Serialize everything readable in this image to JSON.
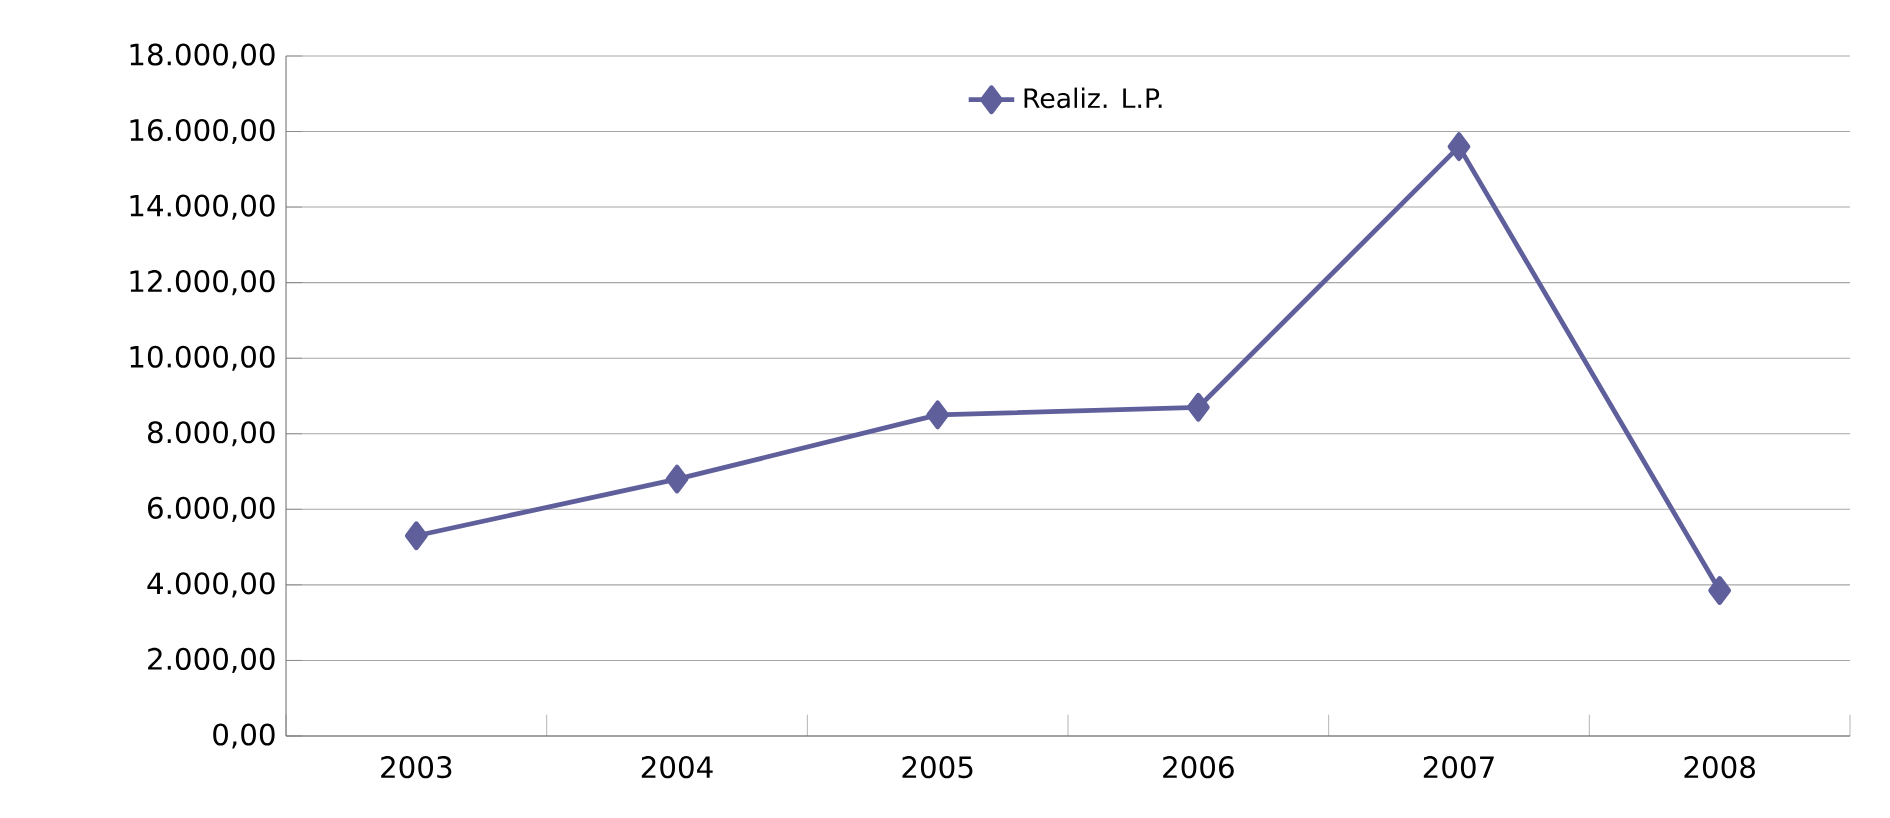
{
  "chart_data": {
    "type": "line",
    "categories": [
      "2003",
      "2004",
      "2005",
      "2006",
      "2007",
      "2008"
    ],
    "series": [
      {
        "name": "Realiz. L.P.",
        "color": "#5f5f9c",
        "values": [
          5300,
          6800,
          8500,
          8700,
          15600,
          3850
        ]
      }
    ],
    "ylim": [
      0,
      18000
    ],
    "yticks": [
      {
        "value": 0,
        "label": "0,00"
      },
      {
        "value": 2000,
        "label": "2.000,00"
      },
      {
        "value": 4000,
        "label": "4.000,00"
      },
      {
        "value": 6000,
        "label": "6.000,00"
      },
      {
        "value": 8000,
        "label": "8.000,00"
      },
      {
        "value": 10000,
        "label": "10.000,00"
      },
      {
        "value": 12000,
        "label": "12.000,00"
      },
      {
        "value": 14000,
        "label": "14.000,00"
      },
      {
        "value": 16000,
        "label": "16.000,00"
      },
      {
        "value": 18000,
        "label": "18.000,00"
      }
    ],
    "grid": "y",
    "legend": "top",
    "marker": "diamond",
    "line_style": "solid"
  }
}
